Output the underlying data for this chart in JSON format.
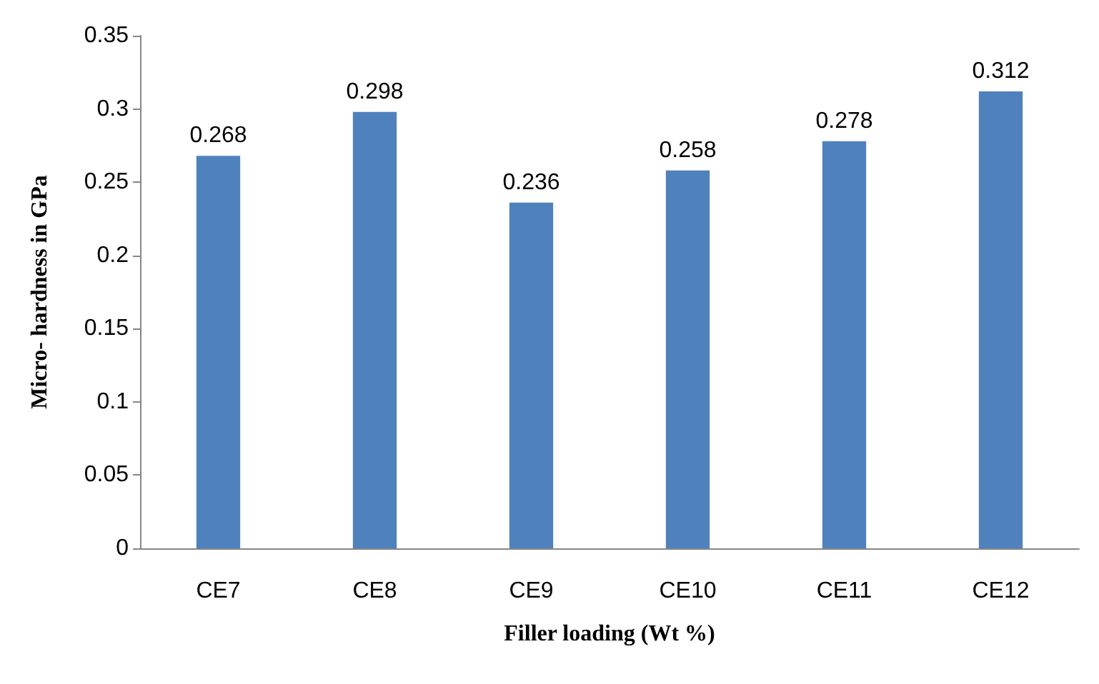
{
  "chart_data": {
    "type": "bar",
    "xlabel": "Filler loading (Wt %)",
    "ylabel": "Micro- hardness in GPa",
    "categories": [
      "CE7",
      "CE8",
      "CE9",
      "CE10",
      "CE11",
      "CE12"
    ],
    "values": [
      0.268,
      0.298,
      0.236,
      0.258,
      0.278,
      0.312
    ],
    "color": "#4f81bd",
    "data_labels": true,
    "grid": false,
    "ylim": [
      0,
      0.35
    ],
    "yticks": [
      0,
      0.05,
      0.1,
      0.15,
      0.2,
      0.25,
      0.3,
      0.35
    ]
  }
}
